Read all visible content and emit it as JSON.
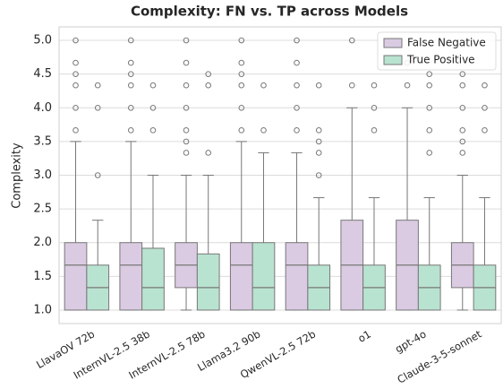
{
  "chart_data": {
    "type": "box",
    "title": "Complexity: FN vs. TP across Models",
    "ylabel": "Complexity",
    "categories": [
      "LlavaOV 72b",
      "InternVL-2.5 38b",
      "InternVL-2.5 78b",
      "Llama3.2 90b",
      "QwenVL-2.5 72b",
      "o1",
      "gpt-4o",
      "Claude-3-5-sonnet"
    ],
    "ylim": [
      0.8,
      5.2
    ],
    "yticks": [
      {
        "value": 1,
        "label": "1.0"
      },
      1.5,
      {
        "value": 2,
        "label": "2.0"
      },
      2.5,
      {
        "value": 3,
        "label": "3.0"
      },
      3.5,
      {
        "value": 4,
        "label": "4.0"
      },
      4.5,
      {
        "value": 5,
        "label": "5.0"
      }
    ],
    "grid": true,
    "legend": "upper right",
    "series": [
      {
        "name": "False Negative",
        "color": "#dacbe3",
        "boxes": [
          {
            "q1": 1,
            "median": 1.667,
            "q3": 2,
            "whislo": 1,
            "whishi": 3.5,
            "fliers": [
              3.667,
              4,
              4.333,
              4.5,
              4.667,
              5
            ]
          },
          {
            "q1": 1,
            "median": 1.667,
            "q3": 2,
            "whislo": 1,
            "whishi": 3.5,
            "fliers": [
              3.667,
              4,
              4.333,
              4.5,
              4.667,
              5
            ]
          },
          {
            "q1": 1.333,
            "median": 1.667,
            "q3": 2,
            "whislo": 1,
            "whishi": 3,
            "fliers": [
              3.333,
              3.5,
              3.667,
              4,
              4.333,
              4.667,
              5
            ]
          },
          {
            "q1": 1,
            "median": 1.667,
            "q3": 2,
            "whislo": 1,
            "whishi": 3.5,
            "fliers": [
              3.667,
              4,
              4.333,
              4.5,
              4.667,
              5
            ]
          },
          {
            "q1": 1,
            "median": 1.667,
            "q3": 2,
            "whislo": 1,
            "whishi": 3.333,
            "fliers": [
              3.667,
              4,
              4.333,
              4.667,
              5
            ]
          },
          {
            "q1": 1,
            "median": 1.667,
            "q3": 2.333,
            "whislo": 1,
            "whishi": 4,
            "fliers": [
              4.333,
              5
            ]
          },
          {
            "q1": 1,
            "median": 1.667,
            "q3": 2.333,
            "whislo": 1,
            "whishi": 4,
            "fliers": [
              4.333,
              4.667
            ]
          },
          {
            "q1": 1.333,
            "median": 1.667,
            "q3": 2,
            "whislo": 1,
            "whishi": 3,
            "fliers": [
              3.333,
              3.5,
              3.667,
              4,
              4.333,
              4.5
            ]
          }
        ]
      },
      {
        "name": "True Positive",
        "color": "#b9e3d1",
        "boxes": [
          {
            "q1": 1,
            "median": 1.333,
            "q3": 1.667,
            "whislo": 1,
            "whishi": 2.333,
            "fliers": [
              3,
              4,
              4.333
            ]
          },
          {
            "q1": 1,
            "median": 1.333,
            "q3": 1.917,
            "whislo": 1,
            "whishi": 3,
            "fliers": [
              3.667,
              4,
              4.333
            ]
          },
          {
            "q1": 1,
            "median": 1.333,
            "q3": 1.833,
            "whislo": 1,
            "whishi": 3,
            "fliers": [
              3.333,
              4.333,
              4.5
            ]
          },
          {
            "q1": 1,
            "median": 1.333,
            "q3": 2,
            "whislo": 1,
            "whishi": 3.333,
            "fliers": [
              3.667,
              4.333
            ]
          },
          {
            "q1": 1,
            "median": 1.333,
            "q3": 1.667,
            "whislo": 1,
            "whishi": 2.667,
            "fliers": [
              3,
              3.333,
              3.5,
              3.667,
              4.333
            ]
          },
          {
            "q1": 1,
            "median": 1.333,
            "q3": 1.667,
            "whislo": 1,
            "whishi": 2.667,
            "fliers": [
              3.667,
              4,
              4.333
            ]
          },
          {
            "q1": 1,
            "median": 1.333,
            "q3": 1.667,
            "whislo": 1,
            "whishi": 2.667,
            "fliers": [
              3.333,
              3.667,
              4,
              4.333,
              4.5
            ]
          },
          {
            "q1": 1,
            "median": 1.333,
            "q3": 1.667,
            "whislo": 1,
            "whishi": 2.667,
            "fliers": [
              3.667,
              4,
              4.333
            ]
          }
        ]
      }
    ]
  }
}
